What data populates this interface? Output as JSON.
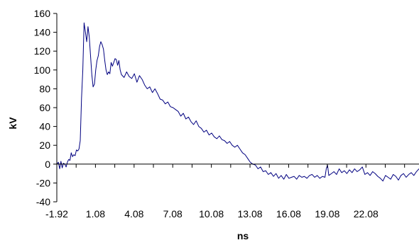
{
  "chart_data": {
    "type": "line",
    "title": "",
    "xlabel": "ns",
    "ylabel": "kV",
    "grid": false,
    "legend": "none",
    "line_color": "#000080",
    "xlim": [
      -1.92,
      26.2
    ],
    "ylim": [
      -40,
      160
    ],
    "x_ticks": [
      "-1.92",
      "1.08",
      "4.08",
      "7.08",
      "10.08",
      "13.08",
      "16.08",
      "19.08",
      "22.08"
    ],
    "y_ticks": [
      "160",
      "140",
      "120",
      "100",
      "80",
      "60",
      "40",
      "20",
      "0",
      "-20",
      "-40"
    ],
    "series": [
      {
        "x": [
          -1.92,
          -1.8,
          -1.7,
          -1.6,
          -1.5,
          -1.4,
          -1.3,
          -1.2,
          -1.1,
          -1.0,
          -0.9,
          -0.8,
          -0.7,
          -0.6,
          -0.5,
          -0.4,
          -0.3,
          -0.2,
          -0.1,
          0.0,
          0.1,
          0.2,
          0.3,
          0.4,
          0.5,
          0.6,
          0.7,
          0.8,
          0.9,
          1.0,
          1.1,
          1.2,
          1.3,
          1.4,
          1.5,
          1.6,
          1.7,
          1.8,
          1.9,
          2.0,
          2.1,
          2.2,
          2.3,
          2.4,
          2.5,
          2.6,
          2.7,
          2.8,
          2.9,
          3.0,
          3.1,
          3.3,
          3.5,
          3.7,
          3.9,
          4.1,
          4.3,
          4.5,
          4.7,
          4.9,
          5.1,
          5.3,
          5.5,
          5.7,
          5.9,
          6.1,
          6.3,
          6.5,
          6.7,
          6.9,
          7.1,
          7.3,
          7.5,
          7.7,
          7.9,
          8.1,
          8.3,
          8.5,
          8.7,
          8.9,
          9.1,
          9.3,
          9.5,
          9.7,
          9.9,
          10.1,
          10.3,
          10.5,
          10.7,
          10.9,
          11.1,
          11.3,
          11.5,
          11.7,
          11.9,
          12.1,
          12.3,
          12.5,
          12.7,
          12.9,
          13.1,
          13.3,
          13.5,
          13.7,
          13.9,
          14.1,
          14.3,
          14.5,
          14.7,
          14.9,
          15.1,
          15.3,
          15.5,
          15.7,
          15.9,
          16.1,
          16.3,
          16.5,
          16.7,
          16.9,
          17.1,
          17.3,
          17.5,
          17.7,
          17.9,
          18.1,
          18.3,
          18.5,
          18.7,
          18.9,
          19.0,
          19.1,
          19.2,
          19.4,
          19.6,
          19.8,
          20.0,
          20.2,
          20.4,
          20.6,
          20.8,
          21.0,
          21.2,
          21.4,
          21.6,
          21.8,
          22.0,
          22.2,
          22.4,
          22.6,
          22.8,
          23.0,
          23.2,
          23.4,
          23.6,
          23.8,
          24.0,
          24.2,
          24.4,
          24.6,
          24.8,
          25.0,
          25.2,
          25.4,
          25.6,
          25.8,
          26.0,
          26.2
        ],
        "y": [
          0,
          2,
          -5,
          3,
          -4,
          1,
          0,
          -3,
          2,
          5,
          4,
          12,
          8,
          10,
          9,
          15,
          14,
          16,
          25,
          70,
          100,
          150,
          140,
          130,
          146,
          135,
          115,
          95,
          82,
          85,
          100,
          110,
          115,
          125,
          130,
          127,
          122,
          110,
          100,
          95,
          98,
          96,
          108,
          104,
          108,
          112,
          111,
          105,
          110,
          100,
          95,
          92,
          98,
          93,
          91,
          96,
          87,
          94,
          90,
          84,
          80,
          82,
          76,
          80,
          75,
          69,
          68,
          64,
          66,
          61,
          60,
          58,
          56,
          51,
          54,
          48,
          50,
          45,
          42,
          46,
          40,
          38,
          34,
          36,
          31,
          33,
          29,
          27,
          30,
          26,
          25,
          22,
          24,
          20,
          18,
          20,
          16,
          12,
          10,
          6,
          2,
          0,
          -1,
          -5,
          -3,
          -8,
          -7,
          -11,
          -9,
          -13,
          -10,
          -15,
          -12,
          -16,
          -11,
          -15,
          -14,
          -13,
          -16,
          -12,
          -14,
          -13,
          -15,
          -12,
          -11,
          -14,
          -12,
          -15,
          -13,
          -14,
          -5,
          -1,
          -12,
          -10,
          -8,
          -11,
          -5,
          -9,
          -7,
          -10,
          -6,
          -9,
          -5,
          -8,
          -6,
          -3,
          -11,
          -9,
          -12,
          -8,
          -10,
          -13,
          -15,
          -18,
          -12,
          -14,
          -16,
          -11,
          -13,
          -17,
          -12,
          -10,
          -14,
          -11,
          -9,
          -12,
          -8,
          -5
        ]
      }
    ]
  }
}
